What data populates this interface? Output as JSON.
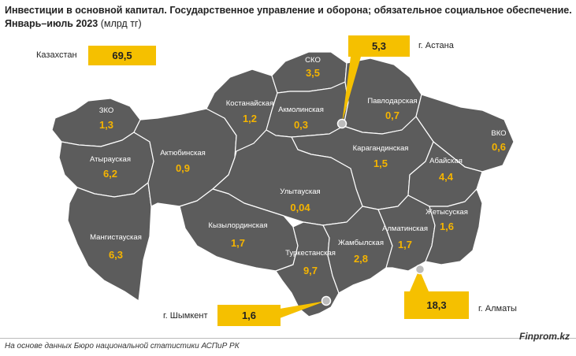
{
  "title_line1": "Инвестиции в основной капитал. Государственное управление и оборона; обязательное социальное обеспечение.",
  "title_line2": "Январь–июль 2023",
  "title_unit": "(млрд тг)",
  "kazakhstan": {
    "label": "Казахстан",
    "value": "69,5"
  },
  "regions": [
    {
      "id": "zko",
      "name": "ЗКО",
      "value": "1,3"
    },
    {
      "id": "atyrau",
      "name": "Атырауская",
      "value": "6,2"
    },
    {
      "id": "mangistau",
      "name": "Мангистауская",
      "value": "6,3"
    },
    {
      "id": "aktobe",
      "name": "Актюбинская",
      "value": "0,9"
    },
    {
      "id": "kostanay",
      "name": "Костанайская",
      "value": "1,2"
    },
    {
      "id": "sko",
      "name": "СКО",
      "value": "3,5"
    },
    {
      "id": "akmola",
      "name": "Акмолинская",
      "value": "0,3"
    },
    {
      "id": "pavlodar",
      "name": "Павлодарская",
      "value": "0,7"
    },
    {
      "id": "vko",
      "name": "ВКО",
      "value": "0,6"
    },
    {
      "id": "karaganda",
      "name": "Карагандинская",
      "value": "1,5"
    },
    {
      "id": "abay",
      "name": "Абайская",
      "value": "4,4"
    },
    {
      "id": "ulytau",
      "name": "Улытауская",
      "value": "0,04"
    },
    {
      "id": "kyzylorda",
      "name": "Кызылординская",
      "value": "1,7"
    },
    {
      "id": "turkestan",
      "name": "Туркестанская",
      "value": "9,7"
    },
    {
      "id": "zhambyl",
      "name": "Жамбылская",
      "value": "2,8"
    },
    {
      "id": "almaty_reg",
      "name": "Алматинская",
      "value": "1,7"
    },
    {
      "id": "zhetysu",
      "name": "Жетысуская",
      "value": "1,6"
    }
  ],
  "cities": [
    {
      "id": "astana",
      "label": "г. Астана",
      "value": "5,3"
    },
    {
      "id": "almaty",
      "label": "г. Алматы",
      "value": "18,3"
    },
    {
      "id": "shymkent",
      "label": "г. Шымкент",
      "value": "1,6"
    }
  ],
  "colors": {
    "region_fill": "#5c5c5c",
    "value_text": "#f5b400",
    "callout_fill": "#f5c000"
  },
  "source": "На основе данных Бюро национальной статистики АСПиР РК",
  "brand": "Finprom.kz"
}
